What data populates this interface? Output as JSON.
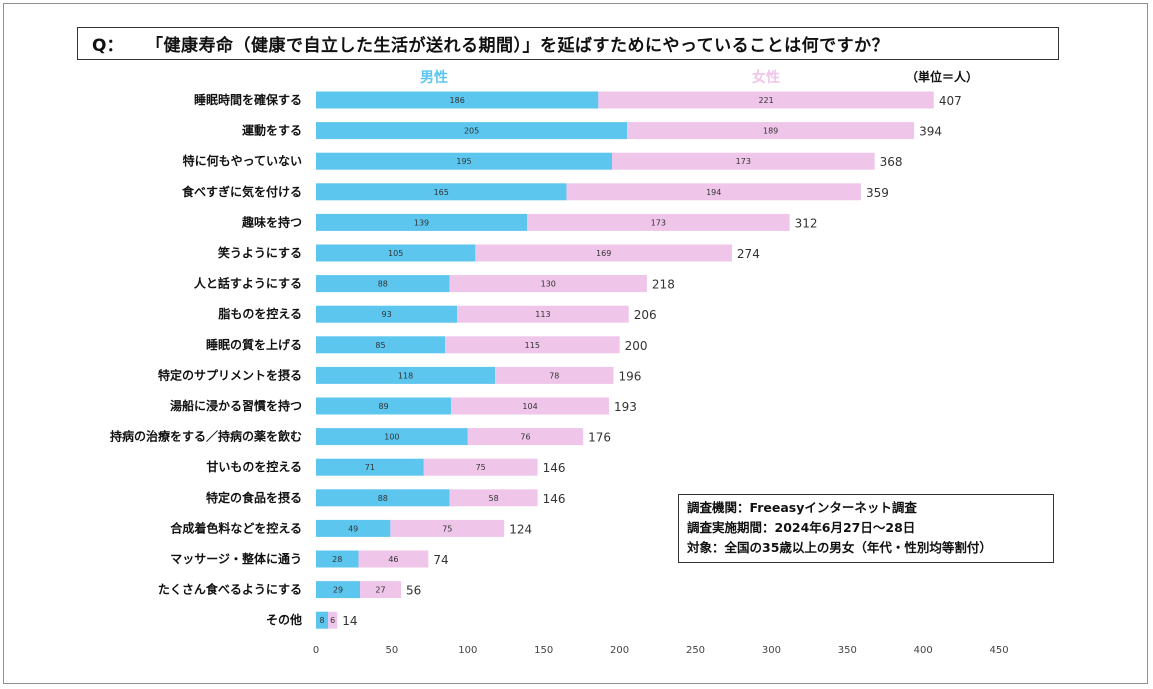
{
  "question": {
    "prefix": "Q：",
    "text": "「健康寿命（健康で自立した生活が送れる期間）」を延ばすためにやっていることは何ですか？"
  },
  "colors": {
    "male": "#5cc6ef",
    "female": "#efc6ea"
  },
  "info_box": {
    "lines": [
      "調査機関：Freeasyインターネット調査",
      "調査実施期間：2024年6月27日〜28日",
      "対象：全国の35歳以上の男女（年代・性別均等割付）"
    ]
  },
  "chart_data": {
    "type": "bar",
    "orientation": "horizontal",
    "stacked": true,
    "unit_label": "（単位＝人）",
    "categories": [
      "睡眠時間を確保する",
      "運動をする",
      "特に何もやっていない",
      "食べすぎに気を付ける",
      "趣味を持つ",
      "笑うようにする",
      "人と話すようにする",
      "脂ものを控える",
      "睡眠の質を上げる",
      "特定のサプリメントを摂る",
      "湯船に浸かる習慣を持つ",
      "持病の治療をする／持病の薬を飲む",
      "甘いものを控える",
      "特定の食品を摂る",
      "合成着色料などを控える",
      "マッサージ・整体に通う",
      "たくさん食べるようにする",
      "その他"
    ],
    "series": [
      {
        "name": "男性",
        "values": [
          186,
          205,
          195,
          165,
          139,
          105,
          88,
          93,
          85,
          118,
          89,
          100,
          71,
          88,
          49,
          28,
          29,
          8
        ]
      },
      {
        "name": "女性",
        "values": [
          221,
          189,
          173,
          194,
          173,
          169,
          130,
          113,
          115,
          78,
          104,
          76,
          75,
          58,
          75,
          46,
          27,
          6
        ]
      }
    ],
    "totals": [
      407,
      394,
      368,
      359,
      312,
      274,
      218,
      206,
      200,
      196,
      193,
      176,
      146,
      146,
      124,
      74,
      56,
      14
    ],
    "xlim": [
      0,
      450
    ],
    "xticks": [
      0,
      50,
      100,
      150,
      200,
      250,
      300,
      350,
      400,
      450
    ],
    "grid": false,
    "legend": "top"
  }
}
